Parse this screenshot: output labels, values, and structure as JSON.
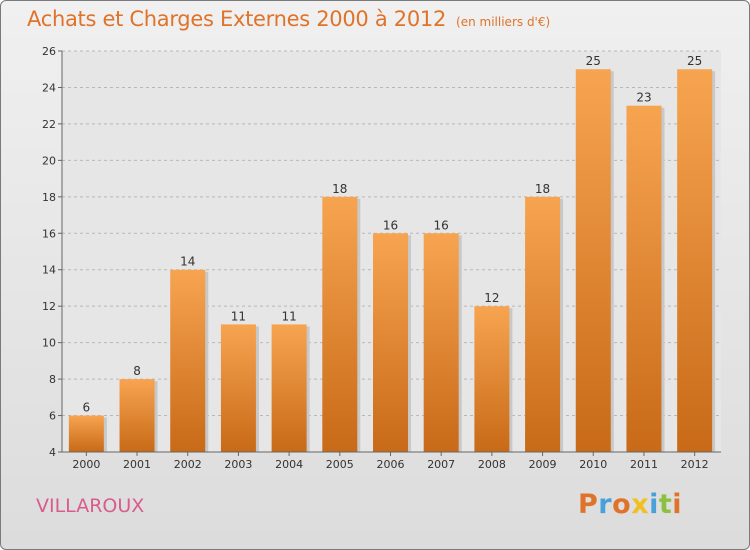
{
  "header": {
    "title": "Achats et Charges Externes 2000 à 2012",
    "unit": "(en milliers d'€)"
  },
  "footer": {
    "town": "VILLAROUX",
    "brand": "Proxiti"
  },
  "colors": {
    "bar_light": "#f7a450",
    "bar_dark": "#c86a18",
    "title": "#e0732a",
    "town": "#d95c8c",
    "brand_letters": [
      "#e0732a",
      "#4aa0d8",
      "#e0732a",
      "#f0c020",
      "#4aa0d8",
      "#8cc040",
      "#e0732a"
    ]
  },
  "chart_data": {
    "type": "bar",
    "title": "Achats et Charges Externes 2000 à 2012",
    "unit": "(en milliers d'€)",
    "categories": [
      "2000",
      "2001",
      "2002",
      "2003",
      "2004",
      "2005",
      "2006",
      "2007",
      "2008",
      "2009",
      "2010",
      "2011",
      "2012"
    ],
    "values": [
      6,
      8,
      14,
      11,
      11,
      18,
      16,
      16,
      12,
      18,
      25,
      23,
      25
    ],
    "ylim": [
      4,
      26
    ],
    "yticks": [
      4,
      6,
      8,
      10,
      12,
      14,
      16,
      18,
      20,
      22,
      24,
      26
    ],
    "grid": "horizontal dashed"
  }
}
